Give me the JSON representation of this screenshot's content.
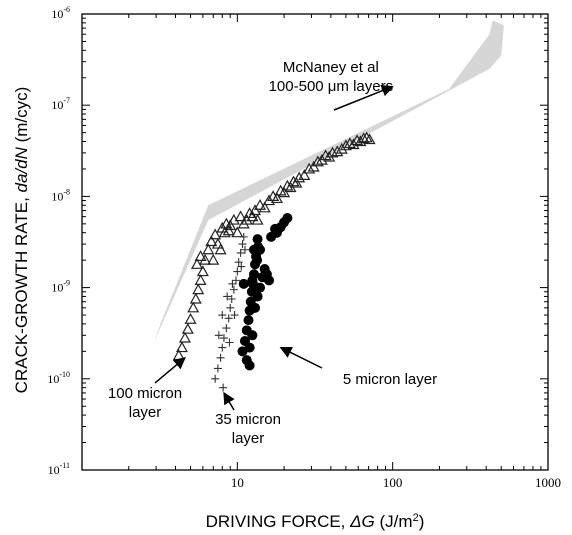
{
  "chart_data": {
    "type": "scatter",
    "x_scale": "log",
    "y_scale": "log",
    "xlim": [
      1,
      1000
    ],
    "ylim": [
      1e-11,
      1e-06
    ],
    "grid": false,
    "xlabel_text": "DRIVING FORCE, ",
    "xlabel_symbol": "ΔG",
    "xlabel_unit_pre": " (J/m",
    "xlabel_unit_sup": "2",
    "xlabel_unit_post": ")",
    "ylabel_text": "CRACK-GROWTH RATE, ",
    "ylabel_symbol": "da/dN",
    "ylabel_unit": " (m/cyc)",
    "x_ticks": [
      {
        "value": 10,
        "label": "10"
      },
      {
        "value": 100,
        "label": "100"
      },
      {
        "value": 1000,
        "label": "1000"
      }
    ],
    "y_ticks": [
      {
        "value": 1e-06,
        "base": "10",
        "exp": "-6"
      },
      {
        "value": 1e-07,
        "base": "10",
        "exp": "-7"
      },
      {
        "value": 1e-08,
        "base": "10",
        "exp": "-8"
      },
      {
        "value": 1e-09,
        "base": "10",
        "exp": "-9"
      },
      {
        "value": 1e-10,
        "base": "10",
        "exp": "-10"
      },
      {
        "value": 1e-11,
        "base": "10",
        "exp": "-11"
      }
    ],
    "band": {
      "name": "McNaney et al 100-500 μm layers",
      "color": "#d6d6d6",
      "polygon": [
        [
          2.9,
          2.5e-10
        ],
        [
          6.5,
          5.5e-09
        ],
        [
          420,
          2.5e-07
        ],
        [
          500,
          3.5e-07
        ],
        [
          520,
          7.5e-07
        ],
        [
          440,
          8.5e-07
        ],
        [
          420,
          6e-07
        ],
        [
          230,
          1.5e-07
        ],
        [
          6.5,
          8e-09
        ],
        [
          3.2,
          4e-10
        ]
      ]
    },
    "series": [
      {
        "name": "100 micron layer",
        "marker": "triangle",
        "color": "#222222",
        "points": [
          [
            4.2,
            1.8e-10
          ],
          [
            4.4,
            2.2e-10
          ],
          [
            4.6,
            2.8e-10
          ],
          [
            4.8,
            3.5e-10
          ],
          [
            5.0,
            4.5e-10
          ],
          [
            5.2,
            6e-10
          ],
          [
            5.4,
            7.5e-10
          ],
          [
            5.6,
            9.5e-10
          ],
          [
            5.8,
            1.2e-09
          ],
          [
            6.0,
            1.5e-09
          ],
          [
            5.5,
            1.8e-09
          ],
          [
            5.8,
            2.2e-09
          ],
          [
            6.2,
            2e-09
          ],
          [
            6.5,
            2.6e-09
          ],
          [
            6.8,
            3.2e-09
          ],
          [
            7.0,
            2e-09
          ],
          [
            7.2,
            3.8e-09
          ],
          [
            7.5,
            3e-09
          ],
          [
            7.8,
            2.6e-09
          ],
          [
            8.0,
            4.5e-09
          ],
          [
            8.3,
            4e-09
          ],
          [
            8.5,
            5e-09
          ],
          [
            8.8,
            4.2e-09
          ],
          [
            9.0,
            4.8e-09
          ],
          [
            9.5,
            5.5e-09
          ],
          [
            10.0,
            4e-09
          ],
          [
            10.5,
            6e-09
          ],
          [
            11.0,
            5e-09
          ],
          [
            11.5,
            5.5e-09
          ],
          [
            12.0,
            6.5e-09
          ],
          [
            12.5,
            6e-09
          ],
          [
            13.0,
            7e-09
          ],
          [
            13.5,
            5.5e-09
          ],
          [
            14.0,
            8e-09
          ],
          [
            15.0,
            7.5e-09
          ],
          [
            16.0,
            9e-09
          ],
          [
            17.0,
            1e-08
          ],
          [
            18.0,
            9.5e-09
          ],
          [
            19.0,
            1.15e-08
          ],
          [
            20.0,
            1.1e-08
          ],
          [
            21.0,
            1.3e-08
          ],
          [
            22.0,
            1.25e-08
          ],
          [
            23.0,
            1.45e-08
          ],
          [
            24.0,
            1.4e-08
          ],
          [
            25.0,
            1.6e-08
          ],
          [
            27.0,
            1.7e-08
          ],
          [
            29.0,
            2e-08
          ],
          [
            31.0,
            2.1e-08
          ],
          [
            33.0,
            2.4e-08
          ],
          [
            35.0,
            2.5e-08
          ],
          [
            37.0,
            2.8e-08
          ],
          [
            39.0,
            2.7e-08
          ],
          [
            41.0,
            3e-08
          ],
          [
            44.0,
            3.1e-08
          ],
          [
            47.0,
            3.3e-08
          ],
          [
            50.0,
            3.6e-08
          ],
          [
            53.0,
            3.8e-08
          ],
          [
            56.0,
            3.7e-08
          ],
          [
            59.0,
            4.1e-08
          ],
          [
            62.0,
            4e-08
          ],
          [
            65.0,
            4.3e-08
          ],
          [
            68.0,
            4.4e-08
          ],
          [
            71.0,
            4.2e-08
          ]
        ]
      },
      {
        "name": "35 micron layer",
        "marker": "plus",
        "color": "#333333",
        "points": [
          [
            7.2,
            1e-10
          ],
          [
            7.5,
            1.3e-10
          ],
          [
            7.8,
            1.7e-10
          ],
          [
            8.0,
            2.2e-10
          ],
          [
            8.2,
            2.8e-10
          ],
          [
            8.5,
            3.6e-10
          ],
          [
            8.8,
            4.6e-10
          ],
          [
            9.0,
            6e-10
          ],
          [
            9.2,
            7.5e-10
          ],
          [
            9.5,
            9.5e-10
          ],
          [
            9.8,
            1.2e-09
          ],
          [
            10.0,
            1.5e-09
          ],
          [
            10.2,
            1.9e-09
          ],
          [
            10.5,
            2.4e-09
          ],
          [
            10.8,
            3e-09
          ],
          [
            11.0,
            3.6e-09
          ],
          [
            8.0,
            5e-10
          ],
          [
            8.6,
            8e-10
          ],
          [
            9.3,
            1.1e-09
          ],
          [
            10.6,
            1.7e-09
          ],
          [
            7.6,
            3e-10
          ],
          [
            11.2,
            2.6e-09
          ],
          [
            9.6,
            5e-10
          ],
          [
            8.9,
            2.5e-10
          ],
          [
            8.1,
            8e-11
          ]
        ]
      },
      {
        "name": "5 micron layer",
        "marker": "circle",
        "color": "#000000",
        "points": [
          [
            10.8,
            2e-10
          ],
          [
            11.2,
            2.6e-10
          ],
          [
            11.5,
            3.4e-10
          ],
          [
            11.8,
            4.4e-10
          ],
          [
            12.0,
            5.6e-10
          ],
          [
            12.2,
            7e-10
          ],
          [
            12.4,
            9e-10
          ],
          [
            12.6,
            1.1e-09
          ],
          [
            12.8,
            1.4e-09
          ],
          [
            13.0,
            1.8e-09
          ],
          [
            13.2,
            2.2e-09
          ],
          [
            13.4,
            2e-09
          ],
          [
            13.6,
            2.8e-09
          ],
          [
            12.0,
            2.2e-10
          ],
          [
            12.5,
            3e-10
          ],
          [
            13.0,
            6e-10
          ],
          [
            13.5,
            8e-10
          ],
          [
            14.0,
            1e-09
          ],
          [
            14.5,
            1.3e-09
          ],
          [
            15.0,
            1.6e-09
          ],
          [
            15.5,
            1.4e-09
          ],
          [
            16.0,
            1.2e-09
          ],
          [
            11.5,
            1.6e-10
          ],
          [
            12.0,
            1.4e-10
          ],
          [
            12.5,
            1.2e-09
          ],
          [
            13.0,
            1e-09
          ],
          [
            14.0,
            2.6e-09
          ],
          [
            13.5,
            3.4e-09
          ],
          [
            12.8,
            2.6e-09
          ],
          [
            11.0,
            1.1e-09
          ],
          [
            18.0,
            4e-09
          ],
          [
            19.0,
            4.6e-09
          ],
          [
            20.0,
            5.2e-09
          ],
          [
            21.0,
            5.8e-09
          ],
          [
            16.5,
            3.6e-09
          ],
          [
            17.5,
            4.4e-09
          ]
        ]
      }
    ],
    "annotations": [
      {
        "id": "mcnaney",
        "lines": [
          "McNaney et al",
          "100-500 μm layers"
        ],
        "anchor": [
          40,
          3.2e-07
        ],
        "arrow_to": [
          100,
          1.6e-07
        ]
      },
      {
        "id": "100-micron",
        "lines": [
          "100 micron",
          "layer"
        ],
        "anchor": [
          2.6,
          4.5e-11
        ],
        "arrow_to": [
          4.6,
          1.7e-10
        ]
      },
      {
        "id": "35-micron",
        "lines": [
          "35 micron",
          "layer"
        ],
        "anchor": [
          11.5,
          2.8e-11
        ],
        "arrow_to": [
          8.2,
          7e-11
        ]
      },
      {
        "id": "5-micron",
        "lines": [
          "5 micron layer"
        ],
        "anchor": [
          50,
          8.5e-11
        ],
        "arrow_to": [
          19,
          2.2e-10
        ]
      }
    ]
  }
}
